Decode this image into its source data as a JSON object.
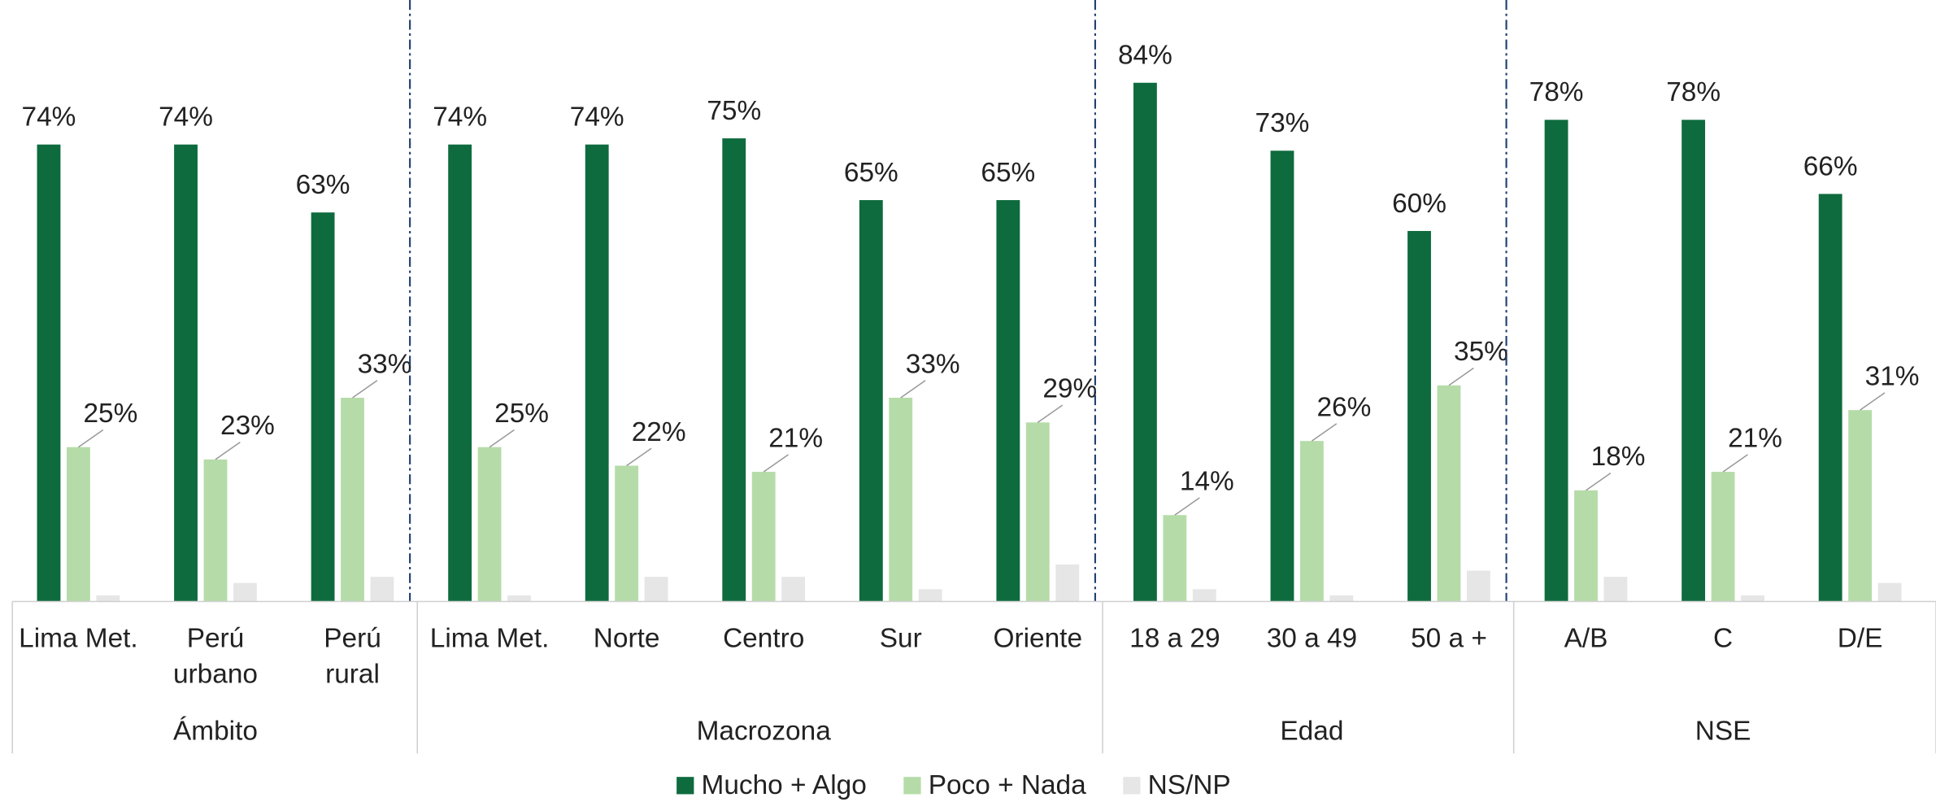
{
  "chart_data": {
    "type": "bar",
    "groups": [
      {
        "name": "Ámbito",
        "categories": [
          [
            "Lima Met."
          ],
          [
            "Perú",
            "urbano"
          ],
          [
            "Perú",
            "rural"
          ]
        ]
      },
      {
        "name": "Macrozona",
        "categories": [
          [
            "Lima Met."
          ],
          [
            "Norte"
          ],
          [
            "Centro"
          ],
          [
            "Sur"
          ],
          [
            "Oriente"
          ]
        ]
      },
      {
        "name": "Edad",
        "categories": [
          [
            "18 a 29"
          ],
          [
            "30 a 49"
          ],
          [
            "50 a +"
          ]
        ]
      },
      {
        "name": "NSE",
        "categories": [
          [
            "A/B"
          ],
          [
            "C"
          ],
          [
            "D/E"
          ]
        ]
      }
    ],
    "series": [
      {
        "name": "Mucho + Algo",
        "color": "#0e6b3e",
        "values": [
          74,
          74,
          63,
          74,
          74,
          75,
          65,
          65,
          84,
          73,
          60,
          78,
          78,
          66
        ],
        "value_labels": [
          "74%",
          "74%",
          "63%",
          "74%",
          "74%",
          "75%",
          "65%",
          "65%",
          "84%",
          "73%",
          "60%",
          "78%",
          "78%",
          "66%"
        ]
      },
      {
        "name": "Poco + Nada",
        "color": "#b5dca8",
        "values": [
          25,
          23,
          33,
          25,
          22,
          21,
          33,
          29,
          14,
          26,
          35,
          18,
          21,
          31
        ],
        "value_labels": [
          "25%",
          "23%",
          "33%",
          "25%",
          "22%",
          "21%",
          "33%",
          "29%",
          "14%",
          "26%",
          "35%",
          "18%",
          "21%",
          "31%"
        ]
      },
      {
        "name": "NS/NP",
        "color": "#e6e6e6",
        "values": [
          1,
          3,
          4,
          1,
          4,
          4,
          2,
          6,
          2,
          1,
          5,
          4,
          1,
          3
        ]
      }
    ]
  }
}
